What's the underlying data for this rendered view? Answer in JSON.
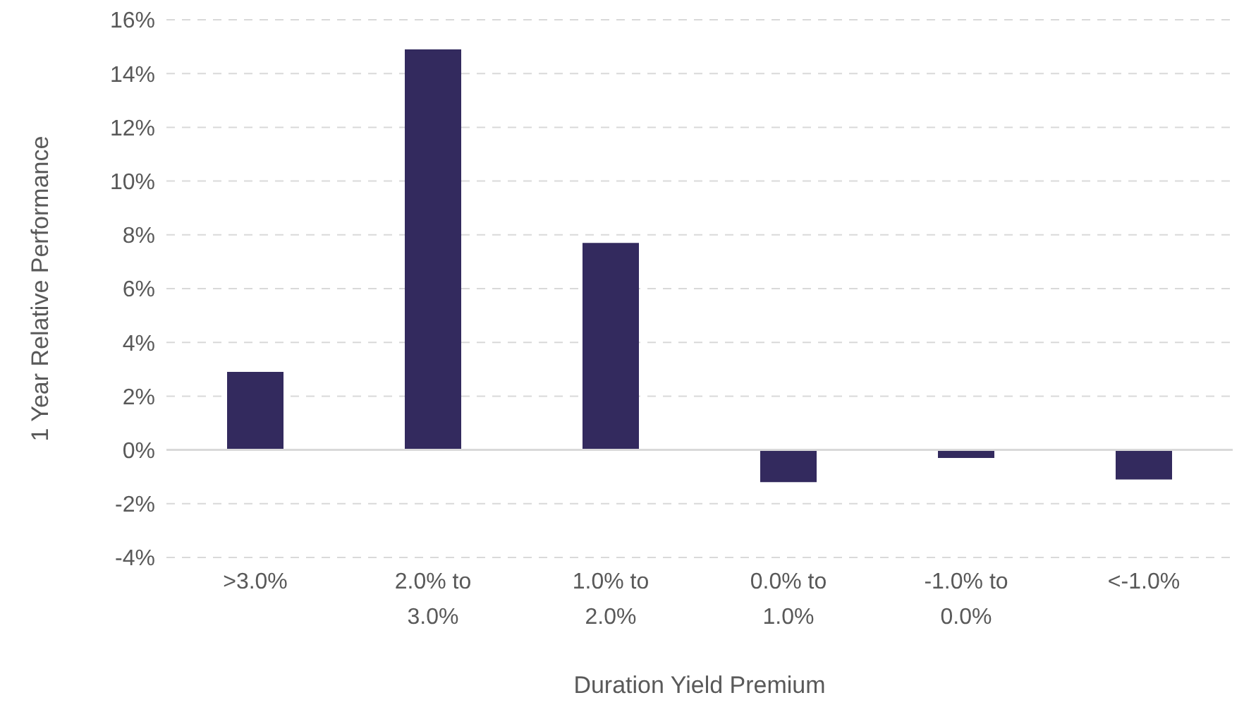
{
  "chart_data": {
    "type": "bar",
    "xlabel": "Duration Yield Premium",
    "ylabel": "1 Year Relative Performance",
    "categories": [
      ">3.0%",
      "2.0% to 3.0%",
      "1.0% to 2.0%",
      "0.0% to 1.0%",
      "-1.0% to 0.0%",
      "<-1.0%"
    ],
    "series": [
      {
        "color": "#332a5e",
        "values": [
          0.029,
          0.149,
          0.077,
          -0.012,
          -0.003,
          -0.011
        ]
      }
    ],
    "ylim": [
      -0.04,
      0.16
    ],
    "yticks": [
      {
        "value": -0.04,
        "label": "-4%"
      },
      {
        "value": -0.02,
        "label": "-2%"
      },
      {
        "value": 0,
        "label": "0%"
      },
      {
        "value": 0.02,
        "label": "2%"
      },
      {
        "value": 0.04,
        "label": "4%"
      },
      {
        "value": 0.06,
        "label": "6%"
      },
      {
        "value": 0.08,
        "label": "8%"
      },
      {
        "value": 0.1,
        "label": "10%"
      },
      {
        "value": 0.12,
        "label": "12%"
      },
      {
        "value": 0.14,
        "label": "14%"
      },
      {
        "value": 0.16,
        "label": "16%"
      }
    ],
    "grid": "y",
    "legend": false
  }
}
